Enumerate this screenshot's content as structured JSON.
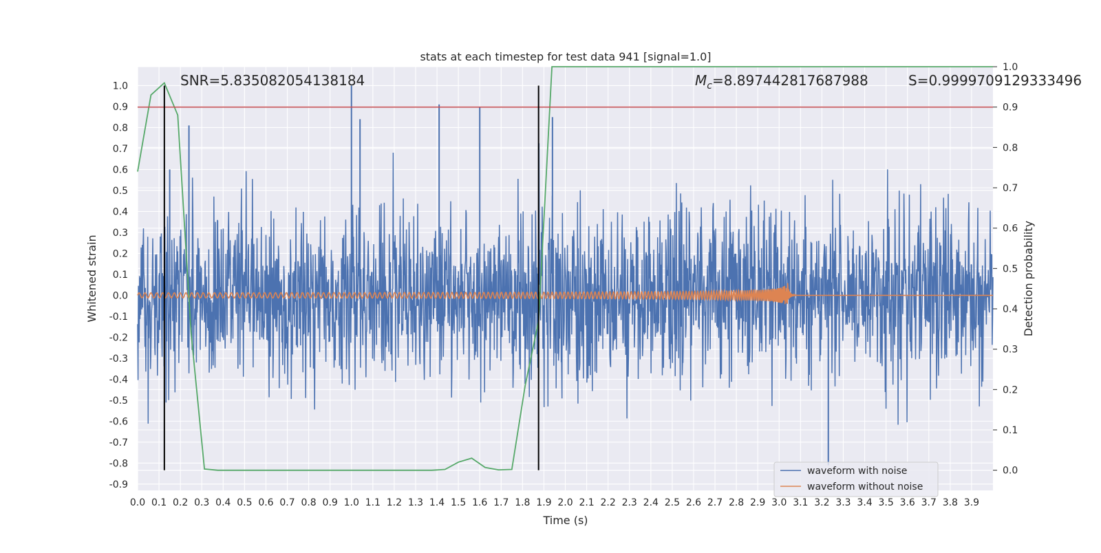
{
  "chart_data": {
    "type": "line",
    "title": "stats at each timestep for test data 941 [signal=1.0]",
    "xlabel": "Time (s)",
    "ylabel": "Whitened strain",
    "y2label": "Detection probability",
    "xlim": [
      0.0,
      4.0
    ],
    "ylim": [
      -0.93,
      1.09
    ],
    "y2lim": [
      -0.05,
      1.0
    ],
    "x_ticks": [
      "0.0",
      "0.1",
      "0.2",
      "0.3",
      "0.4",
      "0.5",
      "0.6",
      "0.7",
      "0.8",
      "0.9",
      "1.0",
      "1.1",
      "1.2",
      "1.3",
      "1.4",
      "1.5",
      "1.6",
      "1.7",
      "1.8",
      "1.9",
      "2.0",
      "2.1",
      "2.2",
      "2.3",
      "2.4",
      "2.5",
      "2.6",
      "2.7",
      "2.8",
      "2.9",
      "3.0",
      "3.1",
      "3.2",
      "3.3",
      "3.4",
      "3.5",
      "3.6",
      "3.7",
      "3.8",
      "3.9"
    ],
    "y_ticks": [
      "1.0",
      "0.9",
      "0.8",
      "0.7",
      "0.6",
      "0.5",
      "0.4",
      "0.3",
      "0.2",
      "0.1",
      "0.0",
      "-0.1",
      "-0.2",
      "-0.3",
      "-0.4",
      "-0.5",
      "-0.6",
      "-0.7",
      "-0.8",
      "-0.9"
    ],
    "y2_ticks": [
      "1.0",
      "0.9",
      "0.8",
      "0.7",
      "0.6",
      "0.5",
      "0.4",
      "0.3",
      "0.2",
      "0.1",
      "0.0"
    ],
    "grid": true,
    "legend_position": "lower-right",
    "annotations": {
      "snr": "SNR=5.835082054138184",
      "mc": "=8.897442817687988",
      "mc_symbol": "M",
      "mc_subscript": "c",
      "s": "S=0.9999709129333496"
    },
    "threshold_y2": 0.9,
    "vertical_lines_x": [
      0.125,
      1.875
    ],
    "series": [
      {
        "name": "waveform with noise",
        "color": "#4c72b0",
        "description_values": {
          "std": 0.2,
          "peak_times": [
            0.15,
            0.24,
            1.0,
            1.04,
            1.41,
            1.6,
            1.94,
            3.23
          ],
          "peak_values": [
            0.6,
            0.81,
            1.0,
            0.84,
            0.91,
            0.9,
            0.85,
            -0.81
          ]
        }
      },
      {
        "name": "waveform without noise",
        "color": "#dd8452",
        "chirp": {
          "start_amp": 0.012,
          "peak_time": 3.04,
          "peak_amp_pos": 0.16,
          "peak_amp_neg": -0.23,
          "end_time": 4.0
        }
      },
      {
        "name": "detection probability",
        "axis": "y2",
        "color": "#55a868",
        "x": [
          0.0,
          0.0625,
          0.125,
          0.1875,
          0.25,
          0.3125,
          0.375,
          0.4375,
          0.5,
          0.5625,
          0.625,
          0.6875,
          0.75,
          0.8125,
          0.875,
          0.9375,
          1.0,
          1.0625,
          1.125,
          1.1875,
          1.25,
          1.3125,
          1.375,
          1.4375,
          1.5,
          1.5625,
          1.625,
          1.6875,
          1.75,
          1.8125,
          1.875,
          1.9375,
          2.0,
          2.5,
          3.0,
          3.5,
          4.0
        ],
        "values": [
          0.74,
          0.93,
          0.96,
          0.88,
          0.34,
          0.003,
          0.0,
          0.0,
          0.0,
          0.0,
          0.0,
          0.0,
          0.0,
          0.0,
          0.0,
          0.0,
          0.0,
          0.0,
          0.0,
          0.0,
          0.0,
          0.0,
          0.0,
          0.002,
          0.02,
          0.03,
          0.007,
          0.001,
          0.002,
          0.21,
          0.37,
          1.0,
          1.0,
          1.0,
          1.0,
          1.0,
          1.0
        ]
      }
    ]
  }
}
